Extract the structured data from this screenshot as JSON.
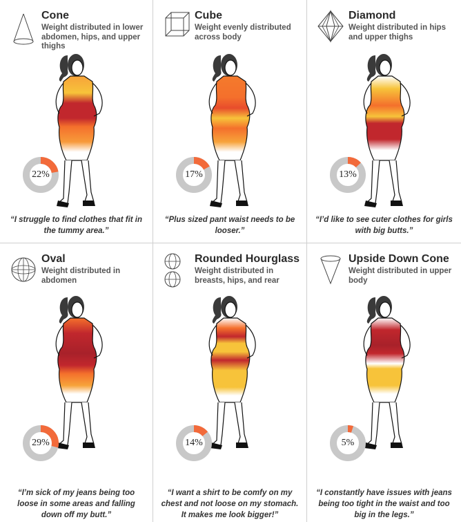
{
  "colors": {
    "donut_fill": "#f26a3a",
    "donut_track": "#c8c8c8",
    "hair": "#333333",
    "skin_outline": "#111111",
    "red": "#c1272d",
    "orange": "#f4702c",
    "yellow": "#f7c33a"
  },
  "panels": [
    {
      "icon": "cone-icon",
      "title": "Cone",
      "desc": "Weight distributed in lower abdomen, hips, and upper thighs",
      "percent": 22,
      "percent_label": "22%",
      "quote": "“I struggle to find clothes that fit in the tummy area.”"
    },
    {
      "icon": "cube-icon",
      "title": "Cube",
      "desc": "Weight evenly distributed across body",
      "percent": 17,
      "percent_label": "17%",
      "quote": "“Plus sized pant waist needs to be looser.”"
    },
    {
      "icon": "diamond-icon",
      "title": "Diamond",
      "desc": "Weight distributed in hips and upper thighs",
      "percent": 13,
      "percent_label": "13%",
      "quote": "“I’d like to see cuter clothes for girls with big butts.”"
    },
    {
      "icon": "sphere-icon",
      "title": "Oval",
      "desc": "Weight distributed in abdomen",
      "percent": 29,
      "percent_label": "29%",
      "quote": "“I’m sick of my jeans being too loose in some areas and falling down off my butt.”"
    },
    {
      "icon": "double-sphere-icon",
      "title": "Rounded Hourglass",
      "desc": "Weight distributed in breasts, hips, and rear",
      "percent": 14,
      "percent_label": "14%",
      "quote": "“I want a shirt to be comfy on my chest and not loose on my stomach. It makes me look bigger!”"
    },
    {
      "icon": "inverted-cone-icon",
      "title": "Upside Down Cone",
      "desc": "Weight distributed in upper body",
      "percent": 5,
      "percent_label": "5%",
      "quote": "“I constantly have issues with jeans being too tight in the waist and too big in the legs.”"
    }
  ]
}
